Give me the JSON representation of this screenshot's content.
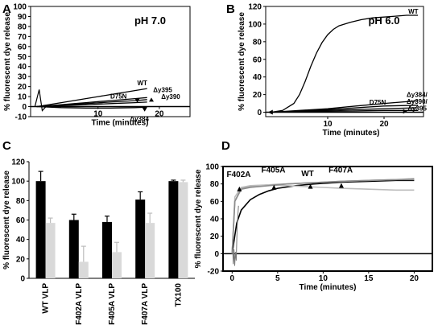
{
  "chart_data": [
    {
      "panel": "A",
      "type": "line",
      "inset_label": "pH 7.0",
      "xlabel": "Time (minutes)",
      "ylabel": "% fluorescent dye release",
      "xlim": [
        -1,
        25
      ],
      "ylim": [
        -10,
        100
      ],
      "xticks": [
        10,
        20
      ],
      "yticks": [
        -10,
        0,
        10,
        20,
        30,
        40,
        50,
        60,
        70,
        80,
        90,
        100
      ],
      "series": [
        {
          "name": "WT",
          "x": [
            0,
            2,
            4,
            6,
            8,
            10,
            12,
            14,
            16,
            18
          ],
          "y": [
            0,
            2,
            4,
            6,
            8,
            10,
            12,
            14,
            16,
            18
          ]
        },
        {
          "name": "Δy395",
          "x": [
            0,
            4,
            8,
            12,
            16,
            18
          ],
          "y": [
            0,
            2,
            4,
            6,
            8,
            9
          ]
        },
        {
          "name": "Δy390",
          "x": [
            0,
            4,
            8,
            12,
            16,
            18
          ],
          "y": [
            0,
            1.5,
            3,
            4.5,
            6,
            7
          ]
        },
        {
          "name": "D75N",
          "x": [
            0,
            4,
            8,
            12,
            16,
            18
          ],
          "y": [
            0,
            1,
            2,
            3,
            4,
            4.5
          ]
        },
        {
          "name": "Δy384",
          "x": [
            0,
            4,
            8,
            12,
            16,
            18
          ],
          "y": [
            0,
            -1,
            -1.5,
            -1.5,
            -1,
            -0.5
          ]
        }
      ],
      "grid": false,
      "annotations": [
        "WT",
        "Δy395",
        "Δy390",
        "D75N",
        "Δy384"
      ]
    },
    {
      "panel": "B",
      "type": "line",
      "inset_label": "pH 6.0",
      "xlabel": "Time (minutes)",
      "ylabel": "% fluorescent dye release",
      "xlim": [
        -1,
        27
      ],
      "ylim": [
        -5,
        120
      ],
      "xticks": [
        10,
        20
      ],
      "yticks": [
        0,
        20,
        40,
        60,
        80,
        100,
        120
      ],
      "series": [
        {
          "name": "WT",
          "x": [
            0,
            2,
            4,
            5,
            6,
            7,
            8,
            9,
            10,
            11,
            12,
            14,
            16,
            18,
            20,
            22,
            24,
            26
          ],
          "y": [
            0,
            2,
            10,
            20,
            35,
            52,
            67,
            79,
            88,
            94,
            98,
            102,
            105,
            107,
            108,
            109,
            110,
            110
          ]
        },
        {
          "name": "D75N",
          "x": [
            0,
            5,
            10,
            15,
            20,
            26
          ],
          "y": [
            0,
            1,
            2,
            3,
            4,
            5
          ]
        },
        {
          "name": "Δy384/",
          "x": [
            0,
            5,
            10,
            15,
            20,
            26
          ],
          "y": [
            0,
            2,
            4,
            7,
            10,
            13
          ]
        },
        {
          "name": "Δy390/",
          "x": [
            0,
            5,
            10,
            15,
            20,
            26
          ],
          "y": [
            0,
            1.5,
            3,
            5,
            7,
            8
          ]
        },
        {
          "name": "Δy395",
          "x": [
            0,
            5,
            10,
            15,
            20,
            26
          ],
          "y": [
            0,
            0.5,
            1,
            1.5,
            2,
            2
          ]
        }
      ],
      "grid": false,
      "annotations": [
        "WT",
        "D75N",
        "Δy384/",
        "Δy390/",
        "Δy395"
      ]
    },
    {
      "panel": "C",
      "type": "bar",
      "ylabel": "% fluorescent dye release",
      "ylim": [
        0,
        120
      ],
      "yticks": [
        0,
        20,
        40,
        60,
        80,
        100,
        120
      ],
      "categories": [
        "WT VLP",
        "F402A VLP",
        "F405A VLP",
        "F407A VLP",
        "TX100"
      ],
      "series": [
        {
          "values": [
            100,
            60,
            58,
            81,
            100
          ],
          "errors": [
            10,
            6,
            6,
            8,
            1
          ],
          "color": "#000000"
        },
        {
          "values": [
            57,
            17,
            27,
            57,
            99
          ],
          "errors": [
            5,
            16,
            10,
            10,
            2
          ],
          "color": "#d9d9d9"
        }
      ],
      "grid": false
    },
    {
      "panel": "D",
      "type": "line",
      "xlabel": "Time (minutes)",
      "ylabel": "% fluorescent dye release",
      "xlim": [
        -1,
        22
      ],
      "ylim": [
        -20,
        100
      ],
      "xticks": [
        0,
        5,
        10,
        15,
        20
      ],
      "yticks": [
        -20,
        0,
        20,
        40,
        60,
        80,
        100
      ],
      "series": [
        {
          "name": "WT",
          "x": [
            0,
            0.5,
            1,
            2,
            3,
            4,
            5,
            7,
            9,
            12,
            15,
            18,
            20
          ],
          "y": [
            0,
            35,
            50,
            62,
            68,
            72,
            75,
            78,
            80,
            82,
            83,
            84,
            84
          ]
        },
        {
          "name": "F402A",
          "x": [
            0,
            0.3,
            1,
            2,
            4,
            6,
            8,
            10,
            12,
            15,
            18,
            20
          ],
          "y": [
            0,
            60,
            75,
            77,
            79,
            80,
            81,
            82,
            83,
            84,
            85,
            85
          ]
        },
        {
          "name": "F405A",
          "x": [
            0,
            0.3,
            1,
            2,
            4,
            6,
            8,
            10,
            12,
            15,
            18,
            20
          ],
          "y": [
            0,
            65,
            76,
            78,
            79,
            78,
            77,
            76,
            75,
            74,
            73,
            73
          ]
        },
        {
          "name": "F407A",
          "x": [
            0,
            0.3,
            1,
            2,
            4,
            6,
            8,
            10,
            12,
            15,
            18,
            20
          ],
          "y": [
            0,
            60,
            74,
            76,
            78,
            80,
            81,
            82,
            83,
            84,
            85,
            86
          ]
        }
      ],
      "grid": false,
      "annotations": [
        "F402A",
        "F405A",
        "WT",
        "F407A"
      ]
    }
  ],
  "panel_letters": [
    "A",
    "B",
    "C",
    "D"
  ]
}
